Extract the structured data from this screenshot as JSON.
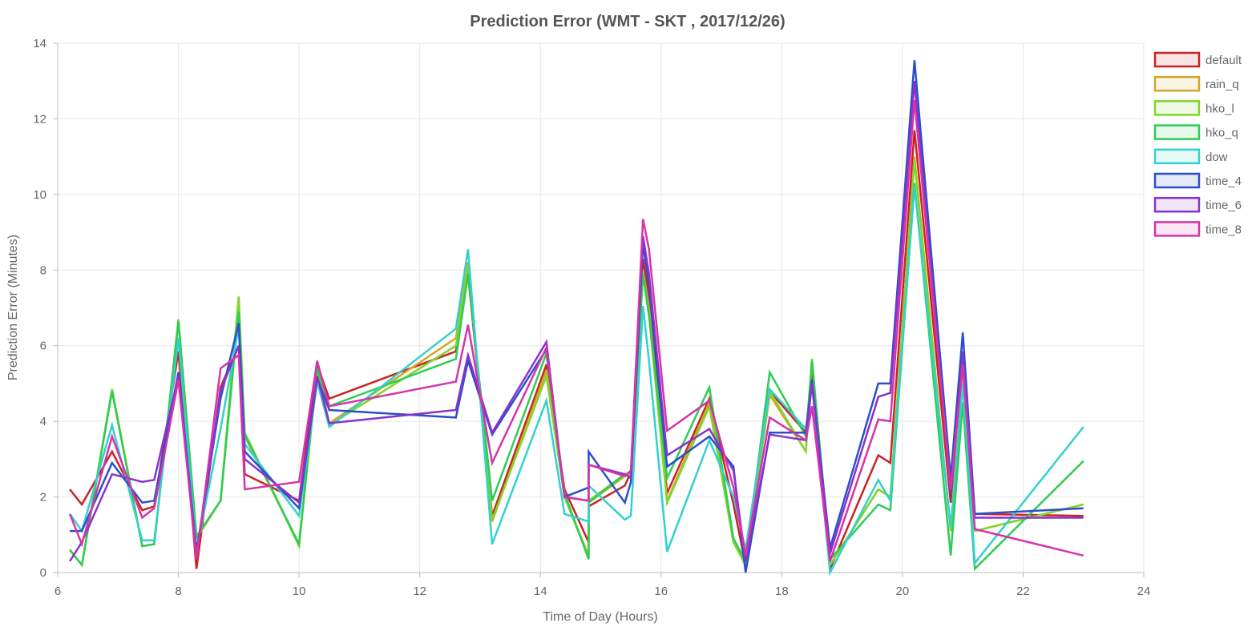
{
  "chart_data": {
    "type": "line",
    "title": "Prediction Error (WMT - SKT , 2017/12/26)",
    "xlabel": "Time of Day (Hours)",
    "ylabel": "Prediction Error (Minutes)",
    "xlim": [
      6,
      24
    ],
    "ylim": [
      0,
      14
    ],
    "xticks": [
      "6",
      "8",
      "10",
      "12",
      "14",
      "16",
      "18",
      "20",
      "22",
      "24"
    ],
    "yticks": [
      "0",
      "2",
      "4",
      "6",
      "8",
      "10",
      "12",
      "14"
    ],
    "grid": true,
    "legend_position": "right",
    "series": [
      {
        "name": "default",
        "color": "#cc2222",
        "points": [
          [
            6.2,
            2.2
          ],
          [
            6.4,
            1.8
          ],
          [
            6.9,
            3.2
          ],
          [
            7.4,
            1.65
          ],
          [
            7.6,
            1.75
          ],
          [
            8.0,
            5.85
          ],
          [
            8.3,
            0.1
          ],
          [
            8.7,
            4.9
          ],
          [
            9.0,
            6.0
          ],
          [
            9.1,
            2.6
          ],
          [
            10.0,
            1.9
          ],
          [
            10.3,
            5.5
          ],
          [
            10.5,
            4.6
          ],
          [
            12.6,
            5.85
          ],
          [
            12.8,
            7.9
          ],
          [
            13.2,
            1.5
          ],
          [
            14.1,
            5.5
          ],
          [
            14.4,
            2.2
          ],
          [
            14.8,
            0.8
          ],
          [
            14.8,
            1.75
          ],
          [
            15.4,
            2.3
          ],
          [
            15.5,
            2.65
          ],
          [
            15.7,
            8.3
          ],
          [
            15.8,
            7.3
          ],
          [
            16.1,
            2.1
          ],
          [
            16.8,
            4.6
          ],
          [
            17.2,
            1.8
          ],
          [
            17.4,
            0.2
          ],
          [
            17.8,
            4.8
          ],
          [
            18.4,
            3.7
          ],
          [
            18.5,
            5.3
          ],
          [
            18.8,
            0.1
          ],
          [
            19.6,
            3.1
          ],
          [
            19.8,
            2.9
          ],
          [
            20.2,
            11.7
          ],
          [
            20.8,
            1.85
          ],
          [
            21.0,
            5.85
          ],
          [
            21.2,
            1.55
          ],
          [
            23.0,
            1.5
          ]
        ]
      },
      {
        "name": "rain_q",
        "color": "#d4a628",
        "points": [
          [
            6.2,
            0.6
          ],
          [
            6.4,
            0.2
          ],
          [
            6.9,
            4.8
          ],
          [
            7.4,
            0.7
          ],
          [
            7.6,
            0.75
          ],
          [
            8.0,
            6.65
          ],
          [
            8.3,
            0.9
          ],
          [
            8.7,
            1.9
          ],
          [
            9.0,
            7.1
          ],
          [
            9.1,
            3.6
          ],
          [
            10.0,
            0.75
          ],
          [
            10.3,
            5.35
          ],
          [
            10.5,
            3.95
          ],
          [
            12.6,
            6.2
          ],
          [
            12.8,
            8.2
          ],
          [
            13.2,
            1.35
          ],
          [
            14.1,
            5.35
          ],
          [
            14.4,
            2.0
          ],
          [
            14.8,
            0.45
          ],
          [
            14.8,
            1.85
          ],
          [
            15.4,
            2.55
          ],
          [
            15.5,
            2.6
          ],
          [
            15.7,
            8.0
          ],
          [
            15.8,
            7.0
          ],
          [
            16.1,
            1.9
          ],
          [
            16.8,
            4.5
          ],
          [
            17.2,
            0.8
          ],
          [
            17.4,
            0.2
          ],
          [
            17.8,
            4.7
          ],
          [
            18.4,
            3.2
          ],
          [
            18.5,
            5.65
          ],
          [
            18.8,
            0.2
          ],
          [
            19.6,
            2.2
          ],
          [
            19.8,
            2.0
          ],
          [
            20.2,
            11.0
          ],
          [
            20.8,
            1.1
          ],
          [
            21.0,
            5.2
          ],
          [
            21.2,
            1.1
          ],
          [
            23.0,
            1.8
          ]
        ]
      },
      {
        "name": "hko_l",
        "color": "#7fd62a",
        "points": [
          [
            6.2,
            0.6
          ],
          [
            6.4,
            0.2
          ],
          [
            6.9,
            4.85
          ],
          [
            7.4,
            0.7
          ],
          [
            7.6,
            0.75
          ],
          [
            8.0,
            6.7
          ],
          [
            8.3,
            0.95
          ],
          [
            8.7,
            1.9
          ],
          [
            9.0,
            7.3
          ],
          [
            9.1,
            3.7
          ],
          [
            10.0,
            0.7
          ],
          [
            10.3,
            5.3
          ],
          [
            10.5,
            3.9
          ],
          [
            12.6,
            6.0
          ],
          [
            12.8,
            8.1
          ],
          [
            13.2,
            1.4
          ],
          [
            14.1,
            5.2
          ],
          [
            14.4,
            2.0
          ],
          [
            14.8,
            0.4
          ],
          [
            14.8,
            1.9
          ],
          [
            15.4,
            2.6
          ],
          [
            15.5,
            2.5
          ],
          [
            15.7,
            7.9
          ],
          [
            15.8,
            6.8
          ],
          [
            16.1,
            1.85
          ],
          [
            16.8,
            4.4
          ],
          [
            17.2,
            0.8
          ],
          [
            17.4,
            0.2
          ],
          [
            17.8,
            4.8
          ],
          [
            18.4,
            3.2
          ],
          [
            18.5,
            5.65
          ],
          [
            18.8,
            0.2
          ],
          [
            19.6,
            2.2
          ],
          [
            19.8,
            2.0
          ],
          [
            20.2,
            10.9
          ],
          [
            20.8,
            1.1
          ],
          [
            21.0,
            5.1
          ],
          [
            21.2,
            1.1
          ],
          [
            23.0,
            1.8
          ]
        ]
      },
      {
        "name": "hko_q",
        "color": "#2ecc55",
        "points": [
          [
            6.2,
            0.6
          ],
          [
            6.4,
            0.2
          ],
          [
            6.9,
            4.8
          ],
          [
            7.4,
            0.7
          ],
          [
            7.6,
            0.75
          ],
          [
            8.0,
            6.65
          ],
          [
            8.3,
            0.95
          ],
          [
            8.7,
            1.9
          ],
          [
            9.0,
            6.9
          ],
          [
            9.1,
            3.65
          ],
          [
            10.0,
            0.75
          ],
          [
            10.3,
            5.4
          ],
          [
            10.5,
            4.4
          ],
          [
            12.6,
            5.65
          ],
          [
            12.8,
            7.9
          ],
          [
            13.2,
            1.9
          ],
          [
            14.1,
            5.8
          ],
          [
            14.4,
            2.1
          ],
          [
            14.8,
            0.35
          ],
          [
            14.8,
            1.85
          ],
          [
            15.4,
            2.6
          ],
          [
            15.5,
            2.65
          ],
          [
            15.7,
            7.9
          ],
          [
            15.8,
            6.8
          ],
          [
            16.1,
            2.5
          ],
          [
            16.8,
            4.9
          ],
          [
            17.2,
            0.9
          ],
          [
            17.4,
            0.3
          ],
          [
            17.8,
            5.3
          ],
          [
            18.4,
            3.6
          ],
          [
            18.5,
            5.6
          ],
          [
            18.8,
            0.35
          ],
          [
            19.6,
            1.8
          ],
          [
            19.8,
            1.65
          ],
          [
            20.2,
            10.3
          ],
          [
            20.8,
            0.45
          ],
          [
            21.0,
            4.5
          ],
          [
            21.2,
            0.1
          ],
          [
            23.0,
            2.95
          ]
        ]
      },
      {
        "name": "dow",
        "color": "#33d0d0",
        "points": [
          [
            6.2,
            1.55
          ],
          [
            6.4,
            1.1
          ],
          [
            6.9,
            3.9
          ],
          [
            7.4,
            0.85
          ],
          [
            7.6,
            0.85
          ],
          [
            8.0,
            6.2
          ],
          [
            8.3,
            0.6
          ],
          [
            8.7,
            3.8
          ],
          [
            9.0,
            6.5
          ],
          [
            9.1,
            3.4
          ],
          [
            10.0,
            1.5
          ],
          [
            10.3,
            5.05
          ],
          [
            10.5,
            3.85
          ],
          [
            12.6,
            6.45
          ],
          [
            12.8,
            8.55
          ],
          [
            13.2,
            0.75
          ],
          [
            14.1,
            4.55
          ],
          [
            14.4,
            1.55
          ],
          [
            14.8,
            1.35
          ],
          [
            14.8,
            2.3
          ],
          [
            15.4,
            1.4
          ],
          [
            15.5,
            1.5
          ],
          [
            15.7,
            7.05
          ],
          [
            15.8,
            5.6
          ],
          [
            16.1,
            0.55
          ],
          [
            16.8,
            3.5
          ],
          [
            17.2,
            2.0
          ],
          [
            17.4,
            0.6
          ],
          [
            17.8,
            4.85
          ],
          [
            18.4,
            3.8
          ],
          [
            18.5,
            5.0
          ],
          [
            18.8,
            0.0
          ],
          [
            19.6,
            2.45
          ],
          [
            19.8,
            1.9
          ],
          [
            20.2,
            10.2
          ],
          [
            20.8,
            1.2
          ],
          [
            21.0,
            5.0
          ],
          [
            21.2,
            0.25
          ],
          [
            23.0,
            3.85
          ]
        ]
      },
      {
        "name": "time_4",
        "color": "#2b4fcc",
        "points": [
          [
            6.2,
            1.1
          ],
          [
            6.4,
            1.1
          ],
          [
            6.9,
            2.9
          ],
          [
            7.4,
            1.85
          ],
          [
            7.6,
            1.9
          ],
          [
            8.0,
            5.3
          ],
          [
            8.3,
            0.55
          ],
          [
            8.7,
            4.6
          ],
          [
            9.0,
            6.6
          ],
          [
            9.1,
            3.2
          ],
          [
            10.0,
            1.7
          ],
          [
            10.3,
            5.15
          ],
          [
            10.5,
            4.3
          ],
          [
            12.6,
            4.1
          ],
          [
            12.8,
            5.6
          ],
          [
            13.2,
            3.65
          ],
          [
            14.1,
            5.9
          ],
          [
            14.4,
            2.0
          ],
          [
            14.8,
            2.25
          ],
          [
            14.8,
            3.2
          ],
          [
            15.4,
            1.85
          ],
          [
            15.5,
            2.4
          ],
          [
            15.7,
            8.7
          ],
          [
            15.8,
            7.6
          ],
          [
            16.1,
            2.8
          ],
          [
            16.8,
            3.6
          ],
          [
            17.2,
            2.8
          ],
          [
            17.4,
            0.0
          ],
          [
            17.8,
            3.7
          ],
          [
            18.4,
            3.7
          ],
          [
            18.5,
            5.1
          ],
          [
            18.8,
            0.65
          ],
          [
            19.6,
            5.0
          ],
          [
            19.8,
            5.0
          ],
          [
            20.2,
            13.55
          ],
          [
            20.8,
            2.5
          ],
          [
            21.0,
            6.35
          ],
          [
            21.2,
            1.55
          ],
          [
            23.0,
            1.7
          ]
        ]
      },
      {
        "name": "time_6",
        "color": "#8833cc",
        "points": [
          [
            6.2,
            0.3
          ],
          [
            6.4,
            0.8
          ],
          [
            6.9,
            2.6
          ],
          [
            7.4,
            2.4
          ],
          [
            7.6,
            2.45
          ],
          [
            8.0,
            5.2
          ],
          [
            8.3,
            0.45
          ],
          [
            8.7,
            4.8
          ],
          [
            9.0,
            6.0
          ],
          [
            9.1,
            3.0
          ],
          [
            10.0,
            1.85
          ],
          [
            10.3,
            5.2
          ],
          [
            10.5,
            3.95
          ],
          [
            12.6,
            4.3
          ],
          [
            12.8,
            5.75
          ],
          [
            13.2,
            3.7
          ],
          [
            14.1,
            6.1
          ],
          [
            14.4,
            2.0
          ],
          [
            14.8,
            1.9
          ],
          [
            14.8,
            2.85
          ],
          [
            15.4,
            2.6
          ],
          [
            15.5,
            2.5
          ],
          [
            15.7,
            8.9
          ],
          [
            15.8,
            7.9
          ],
          [
            16.1,
            3.1
          ],
          [
            16.8,
            3.8
          ],
          [
            17.2,
            2.7
          ],
          [
            17.4,
            0.3
          ],
          [
            17.8,
            3.65
          ],
          [
            18.4,
            3.5
          ],
          [
            18.5,
            5.0
          ],
          [
            18.8,
            0.5
          ],
          [
            19.6,
            4.65
          ],
          [
            19.8,
            4.75
          ],
          [
            20.2,
            13.0
          ],
          [
            20.8,
            2.1
          ],
          [
            21.0,
            5.8
          ],
          [
            21.2,
            1.45
          ],
          [
            23.0,
            1.45
          ]
        ]
      },
      {
        "name": "time_8",
        "color": "#d633aa",
        "points": [
          [
            6.2,
            1.55
          ],
          [
            6.4,
            0.75
          ],
          [
            6.9,
            3.6
          ],
          [
            7.4,
            1.45
          ],
          [
            7.6,
            1.7
          ],
          [
            8.0,
            5.1
          ],
          [
            8.3,
            0.35
          ],
          [
            8.7,
            5.4
          ],
          [
            9.0,
            5.75
          ],
          [
            9.1,
            2.2
          ],
          [
            10.0,
            2.4
          ],
          [
            10.3,
            5.6
          ],
          [
            10.5,
            4.4
          ],
          [
            12.6,
            5.05
          ],
          [
            12.8,
            6.55
          ],
          [
            13.2,
            2.9
          ],
          [
            14.1,
            5.95
          ],
          [
            14.4,
            2.0
          ],
          [
            14.8,
            1.9
          ],
          [
            14.8,
            2.85
          ],
          [
            15.4,
            2.55
          ],
          [
            15.5,
            2.7
          ],
          [
            15.7,
            9.35
          ],
          [
            15.8,
            8.55
          ],
          [
            16.1,
            3.75
          ],
          [
            16.8,
            4.55
          ],
          [
            17.2,
            2.25
          ],
          [
            17.4,
            0.45
          ],
          [
            17.8,
            4.1
          ],
          [
            18.4,
            3.5
          ],
          [
            18.5,
            4.4
          ],
          [
            18.8,
            0.3
          ],
          [
            19.6,
            4.05
          ],
          [
            19.8,
            4.0
          ],
          [
            20.2,
            12.5
          ],
          [
            20.8,
            2.2
          ],
          [
            21.0,
            5.5
          ],
          [
            21.2,
            1.15
          ],
          [
            23.0,
            0.45
          ]
        ]
      }
    ]
  }
}
